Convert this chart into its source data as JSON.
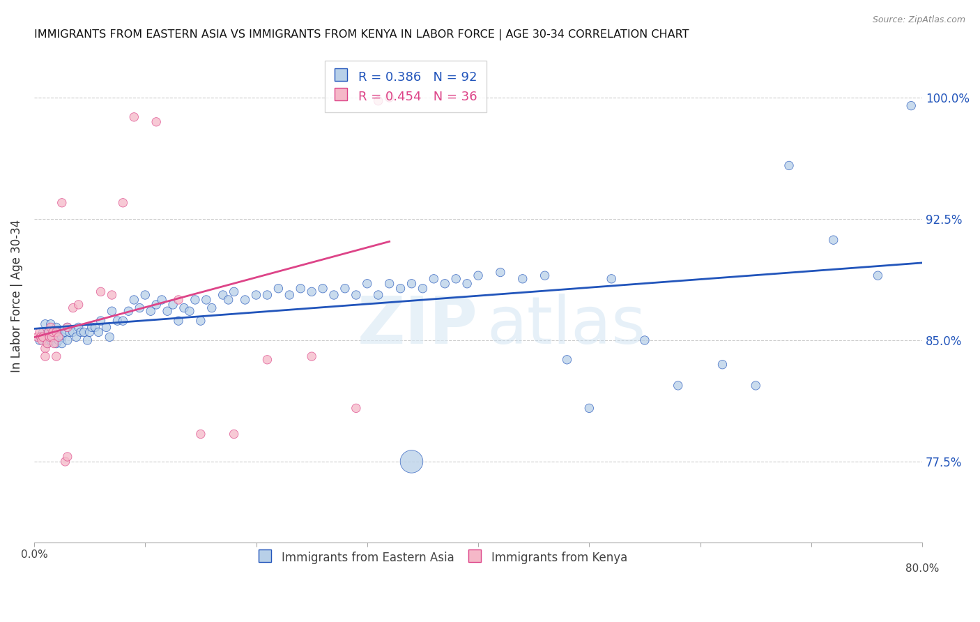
{
  "title": "IMMIGRANTS FROM EASTERN ASIA VS IMMIGRANTS FROM KENYA IN LABOR FORCE | AGE 30-34 CORRELATION CHART",
  "source": "Source: ZipAtlas.com",
  "ylabel": "In Labor Force | Age 30-34",
  "legend_label_blue": "Immigrants from Eastern Asia",
  "legend_label_pink": "Immigrants from Kenya",
  "R_blue": 0.386,
  "N_blue": 92,
  "R_pink": 0.454,
  "N_pink": 36,
  "color_blue": "#b8d0e8",
  "color_pink": "#f5b8c8",
  "line_color_blue": "#2255bb",
  "line_color_pink": "#dd4488",
  "watermark_zip": "ZIP",
  "watermark_atlas": "atlas",
  "xlim": [
    0.0,
    0.8
  ],
  "ylim": [
    0.725,
    1.03
  ],
  "yticks": [
    0.775,
    0.85,
    0.925,
    1.0
  ],
  "ytick_labels": [
    "77.5%",
    "85.0%",
    "92.5%",
    "100.0%"
  ],
  "xticks": [
    0.0,
    0.1,
    0.2,
    0.3,
    0.4,
    0.5,
    0.6,
    0.7,
    0.8
  ],
  "blue_x": [
    0.005,
    0.008,
    0.01,
    0.01,
    0.012,
    0.013,
    0.015,
    0.015,
    0.017,
    0.018,
    0.02,
    0.02,
    0.022,
    0.022,
    0.025,
    0.025,
    0.028,
    0.03,
    0.03,
    0.032,
    0.035,
    0.038,
    0.04,
    0.042,
    0.045,
    0.048,
    0.05,
    0.052,
    0.055,
    0.058,
    0.06,
    0.065,
    0.068,
    0.07,
    0.075,
    0.08,
    0.085,
    0.09,
    0.095,
    0.1,
    0.105,
    0.11,
    0.115,
    0.12,
    0.125,
    0.13,
    0.135,
    0.14,
    0.145,
    0.15,
    0.155,
    0.16,
    0.17,
    0.175,
    0.18,
    0.19,
    0.2,
    0.21,
    0.22,
    0.23,
    0.24,
    0.25,
    0.26,
    0.27,
    0.28,
    0.29,
    0.3,
    0.31,
    0.32,
    0.33,
    0.34,
    0.35,
    0.36,
    0.37,
    0.38,
    0.39,
    0.4,
    0.42,
    0.44,
    0.46,
    0.48,
    0.5,
    0.52,
    0.55,
    0.58,
    0.62,
    0.65,
    0.68,
    0.72,
    0.76,
    0.34,
    0.79
  ],
  "blue_y": [
    0.85,
    0.855,
    0.86,
    0.852,
    0.848,
    0.855,
    0.86,
    0.85,
    0.855,
    0.852,
    0.858,
    0.848,
    0.855,
    0.85,
    0.852,
    0.848,
    0.855,
    0.858,
    0.85,
    0.855,
    0.855,
    0.852,
    0.858,
    0.855,
    0.855,
    0.85,
    0.855,
    0.858,
    0.858,
    0.855,
    0.862,
    0.858,
    0.852,
    0.868,
    0.862,
    0.862,
    0.868,
    0.875,
    0.87,
    0.878,
    0.868,
    0.872,
    0.875,
    0.868,
    0.872,
    0.862,
    0.87,
    0.868,
    0.875,
    0.862,
    0.875,
    0.87,
    0.878,
    0.875,
    0.88,
    0.875,
    0.878,
    0.878,
    0.882,
    0.878,
    0.882,
    0.88,
    0.882,
    0.878,
    0.882,
    0.878,
    0.885,
    0.878,
    0.885,
    0.882,
    0.885,
    0.882,
    0.888,
    0.885,
    0.888,
    0.885,
    0.89,
    0.892,
    0.888,
    0.89,
    0.838,
    0.808,
    0.888,
    0.85,
    0.822,
    0.835,
    0.822,
    0.958,
    0.912,
    0.89,
    0.775,
    0.995
  ],
  "blue_sizes": [
    80,
    80,
    80,
    80,
    80,
    80,
    80,
    80,
    80,
    80,
    80,
    80,
    80,
    80,
    80,
    80,
    80,
    80,
    80,
    80,
    80,
    80,
    80,
    80,
    80,
    80,
    80,
    80,
    80,
    80,
    80,
    80,
    80,
    80,
    80,
    80,
    80,
    80,
    80,
    80,
    80,
    80,
    80,
    80,
    80,
    80,
    80,
    80,
    80,
    80,
    80,
    80,
    80,
    80,
    80,
    80,
    80,
    80,
    80,
    80,
    80,
    80,
    80,
    80,
    80,
    80,
    80,
    80,
    80,
    80,
    80,
    80,
    80,
    80,
    80,
    80,
    80,
    80,
    80,
    80,
    80,
    80,
    80,
    80,
    80,
    80,
    80,
    80,
    80,
    80,
    550,
    80
  ],
  "pink_x": [
    0.003,
    0.005,
    0.006,
    0.007,
    0.008,
    0.01,
    0.01,
    0.012,
    0.013,
    0.014,
    0.015,
    0.016,
    0.017,
    0.018,
    0.02,
    0.02,
    0.022,
    0.025,
    0.028,
    0.03,
    0.03,
    0.035,
    0.04,
    0.06,
    0.07,
    0.08,
    0.09,
    0.11,
    0.13,
    0.15,
    0.18,
    0.21,
    0.25,
    0.29,
    0.31,
    0.32
  ],
  "pink_y": [
    0.852,
    0.855,
    0.852,
    0.85,
    0.852,
    0.845,
    0.84,
    0.848,
    0.855,
    0.852,
    0.858,
    0.852,
    0.855,
    0.848,
    0.84,
    0.855,
    0.852,
    0.935,
    0.775,
    0.778,
    0.858,
    0.87,
    0.872,
    0.88,
    0.878,
    0.935,
    0.988,
    0.985,
    0.875,
    0.792,
    0.792,
    0.838,
    0.84,
    0.808,
    0.998,
    1.0
  ],
  "pink_sizes": [
    80,
    80,
    80,
    80,
    80,
    80,
    80,
    80,
    80,
    80,
    80,
    80,
    80,
    80,
    80,
    80,
    80,
    80,
    80,
    80,
    80,
    80,
    80,
    80,
    80,
    80,
    80,
    80,
    80,
    80,
    80,
    80,
    80,
    80,
    80,
    80
  ]
}
